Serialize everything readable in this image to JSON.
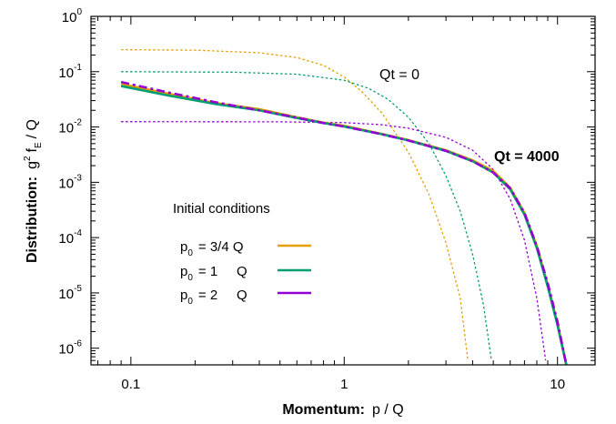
{
  "chart_data": {
    "type": "line",
    "xlabel": {
      "bold": "Momentum:",
      "rest": "p / Q"
    },
    "ylabel": {
      "bold": "Distribution:",
      "g": "g",
      "g_sup": "2",
      "f": "f",
      "f_sub": "E",
      "rest": "/ Q"
    },
    "x_scale": "log",
    "y_scale": "log",
    "xlim": [
      0.065,
      15
    ],
    "ylim": [
      5e-07,
      1
    ],
    "x_ticks": [
      {
        "value": 0.1,
        "label": "0.1"
      },
      {
        "value": 1,
        "label": "1"
      },
      {
        "value": 10,
        "label": "10"
      }
    ],
    "y_ticks": [
      {
        "value": 1e-06,
        "base": "10",
        "exp": "-6"
      },
      {
        "value": 1e-05,
        "base": "10",
        "exp": "-5"
      },
      {
        "value": 0.0001,
        "base": "10",
        "exp": "-4"
      },
      {
        "value": 0.001,
        "base": "10",
        "exp": "-3"
      },
      {
        "value": 0.01,
        "base": "10",
        "exp": "-2"
      },
      {
        "value": 0.1,
        "base": "10",
        "exp": "-1"
      },
      {
        "value": 1,
        "base": "10",
        "exp": "0"
      }
    ],
    "annotations": {
      "initial": "Qt = 0",
      "final": "Qt = 4000"
    },
    "legend": {
      "title": "Initial conditions",
      "entries": [
        {
          "p": "p",
          "sub": "0",
          "rest": "= 3/4 Q",
          "color": "#e69f00"
        },
        {
          "p": "p",
          "sub": "0",
          "rest": "= 1     Q",
          "color": "#009e73"
        },
        {
          "p": "p",
          "sub": "0",
          "rest": "= 2     Q",
          "color": "#9400d3"
        }
      ]
    },
    "initial_curves": [
      {
        "color": "#e69f00",
        "x": [
          0.09,
          0.2,
          0.4,
          0.6,
          0.8,
          1.0,
          1.2,
          1.5,
          2.0,
          2.5,
          3.0,
          3.5,
          3.8
        ],
        "y": [
          0.25,
          0.245,
          0.22,
          0.18,
          0.13,
          0.08,
          0.045,
          0.018,
          0.0035,
          0.0006,
          8e-05,
          8e-06,
          6e-07
        ]
      },
      {
        "color": "#009e73",
        "x": [
          0.09,
          0.3,
          0.6,
          1.0,
          1.3,
          1.6,
          2.0,
          2.5,
          3.0,
          3.5,
          4.0,
          4.5,
          4.9
        ],
        "y": [
          0.1,
          0.098,
          0.09,
          0.07,
          0.05,
          0.032,
          0.015,
          0.005,
          0.0013,
          0.0003,
          5e-05,
          6e-06,
          6e-07
        ]
      },
      {
        "color": "#9400d3",
        "x": [
          0.09,
          0.5,
          1.0,
          1.5,
          2.0,
          3.0,
          4.0,
          5.0,
          6.0,
          7.0,
          8.0,
          8.8
        ],
        "y": [
          0.0125,
          0.0124,
          0.012,
          0.011,
          0.0095,
          0.0065,
          0.0038,
          0.0017,
          0.0005,
          9e-05,
          8e-06,
          6e-07
        ]
      }
    ],
    "final_curves": [
      {
        "color": "#e69f00",
        "x": [
          0.09,
          0.15,
          0.25,
          0.4,
          0.6,
          0.8,
          1.0,
          1.5,
          2.0,
          3.0,
          4.0,
          5.0,
          6.0,
          7.0,
          8.0,
          9.0,
          10.0,
          11.0
        ],
        "y": [
          0.06,
          0.04,
          0.027,
          0.021,
          0.015,
          0.012,
          0.0105,
          0.0075,
          0.0058,
          0.0038,
          0.0025,
          0.0016,
          0.0008,
          0.00028,
          7e-05,
          1.4e-05,
          2.8e-06,
          5e-07
        ]
      },
      {
        "color": "#009e73",
        "x": [
          0.09,
          0.15,
          0.25,
          0.4,
          0.6,
          0.8,
          1.0,
          1.5,
          2.0,
          3.0,
          4.0,
          5.0,
          6.0,
          7.0,
          8.0,
          9.0,
          10.0,
          11.0
        ],
        "y": [
          0.055,
          0.037,
          0.026,
          0.02,
          0.0145,
          0.0118,
          0.0102,
          0.0074,
          0.0057,
          0.0037,
          0.0024,
          0.0015,
          0.00075,
          0.00026,
          6.5e-05,
          1.3e-05,
          2.6e-06,
          5e-07
        ]
      },
      {
        "color": "#9400d3",
        "x": [
          0.09,
          0.15,
          0.25,
          0.4,
          0.6,
          0.8,
          1.0,
          1.5,
          2.0,
          3.0,
          4.0,
          5.0,
          6.0,
          7.0,
          8.0,
          9.0,
          10.0,
          11.0
        ],
        "y": [
          0.065,
          0.042,
          0.028,
          0.02,
          0.0148,
          0.0118,
          0.0102,
          0.0074,
          0.0057,
          0.0037,
          0.0024,
          0.0015,
          0.00078,
          0.00028,
          7e-05,
          1.5e-05,
          3e-06,
          5e-07
        ]
      }
    ]
  }
}
